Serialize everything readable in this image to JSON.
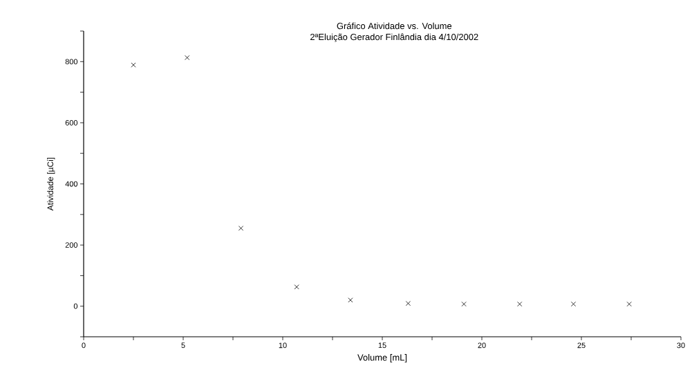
{
  "chart_data": {
    "type": "scatter",
    "title": "Gráfico      Atividade vs. Volume",
    "subtitle": "2ªEluição Gerador Finlândia dia 4/10/2002",
    "xlabel": "Volume [mL]",
    "ylabel": "Atividade [µCi]",
    "x": [
      2.5,
      5.2,
      7.9,
      10.7,
      13.4,
      16.3,
      19.1,
      21.9,
      24.6,
      27.4
    ],
    "series": [
      {
        "color": "#000000",
        "values": [
          789,
          813,
          255,
          63,
          20,
          9,
          7,
          7,
          7,
          7
        ]
      }
    ],
    "marker": "cross",
    "grid": false,
    "xlim": [
      0,
      30
    ],
    "ylim": [
      -100,
      900
    ],
    "xticks": [
      0,
      {
        "value": 2.5,
        "label": null
      },
      5,
      {
        "value": 7.5,
        "label": null
      },
      10,
      {
        "value": 12.5,
        "label": null
      },
      15,
      {
        "value": 17.5,
        "label": null
      },
      20,
      {
        "value": 22.5,
        "label": null
      },
      25,
      {
        "value": 27.5,
        "label": null
      },
      30
    ],
    "yticks": [
      {
        "value": -100,
        "label": null
      },
      0,
      {
        "value": 100,
        "label": null
      },
      200,
      {
        "value": 300,
        "label": null
      },
      400,
      {
        "value": 500,
        "label": null
      },
      600,
      {
        "value": 700,
        "label": null
      },
      800,
      {
        "value": 900,
        "label": null
      }
    ]
  }
}
